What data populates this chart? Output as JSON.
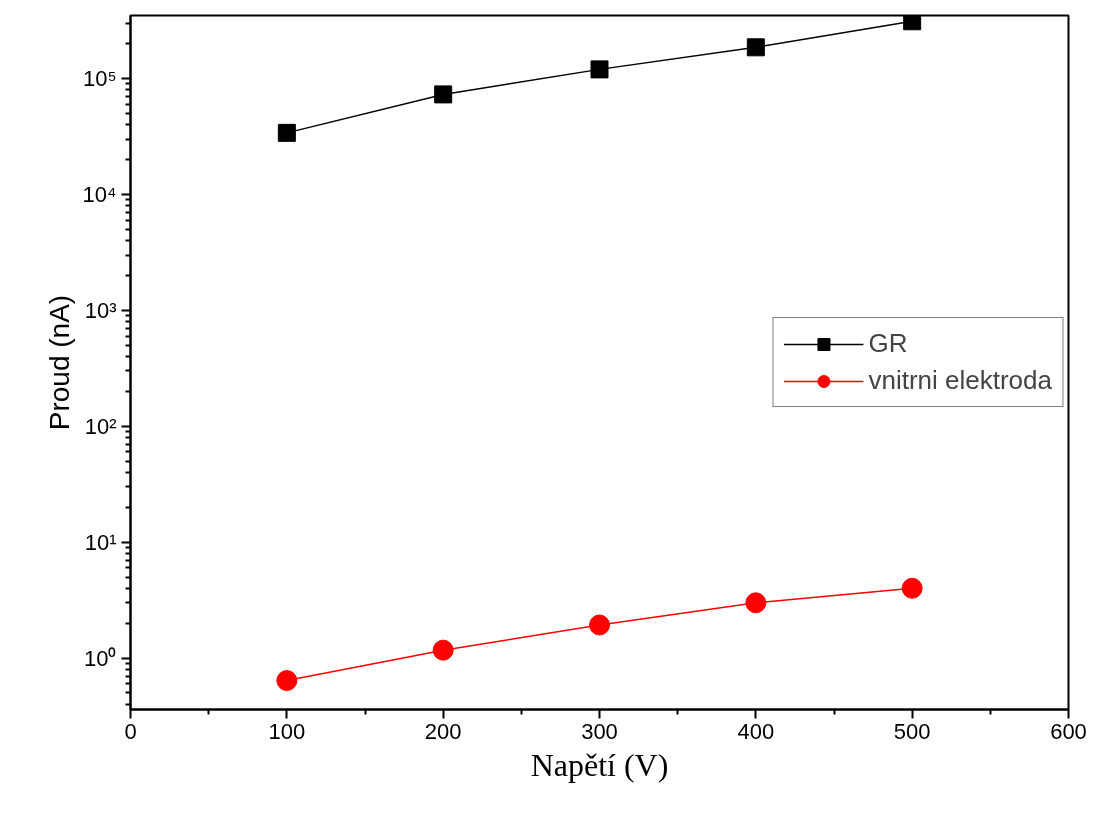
{
  "chart_data": {
    "type": "line",
    "xlabel": "Napětí (V)",
    "ylabel": "Proud (nA)",
    "x": [
      100,
      200,
      300,
      400,
      500
    ],
    "series": [
      {
        "name": "GR",
        "color": "#000000",
        "marker": "square",
        "values": [
          34000,
          73000,
          120000,
          186000,
          312000
        ]
      },
      {
        "name": "vnitrni elektroda",
        "color": "#ff0000",
        "marker": "circle",
        "values": [
          0.64,
          1.17,
          1.93,
          3.0,
          4.0
        ]
      }
    ],
    "log": "y",
    "xlim": [
      0,
      600
    ],
    "ylim": [
      0.36,
      350000
    ],
    "xticks": [
      0,
      100,
      200,
      300,
      400,
      500,
      600
    ],
    "yticks": [
      {
        "value": 1,
        "label": "10⁰"
      },
      {
        "value": 10,
        "label": "10¹"
      },
      {
        "value": 100,
        "label": "10²"
      },
      {
        "value": 1000,
        "label": "10³"
      },
      {
        "value": 10000,
        "label": "10⁴"
      },
      {
        "value": 100000,
        "label": "10⁵"
      }
    ],
    "grid": false,
    "legend": "right",
    "line_style": "solid"
  }
}
